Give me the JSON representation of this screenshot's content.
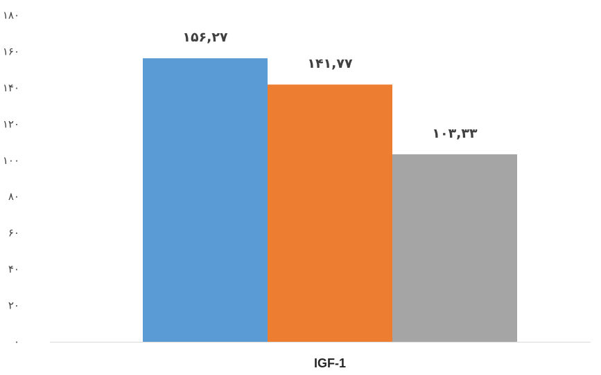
{
  "chart_data": {
    "type": "bar",
    "categories": [
      "IGF-1"
    ],
    "series": [
      {
        "values": [
          156.27
        ],
        "color": "#5b9bd5"
      },
      {
        "values": [
          141.77
        ],
        "color": "#ed7d31"
      },
      {
        "values": [
          103.33
        ],
        "color": "#a5a5a5"
      }
    ],
    "data_labels": [
      "۱۵۶,۲۷",
      "۱۴۱,۷۷",
      "۱۰۳,۳۳"
    ],
    "ylim": [
      0,
      180
    ],
    "y_ticks": [
      0,
      20,
      40,
      60,
      80,
      100,
      120,
      140,
      160,
      180
    ],
    "y_tick_labels": [
      "۰",
      "۲۰",
      "۴۰",
      "۶۰",
      "۸۰",
      "۱۰۰",
      "۱۲۰",
      "۱۴۰",
      "۱۶۰",
      "۱۸۰"
    ],
    "title": "",
    "xlabel": "",
    "ylabel": "",
    "grid": false,
    "legend": "none"
  }
}
